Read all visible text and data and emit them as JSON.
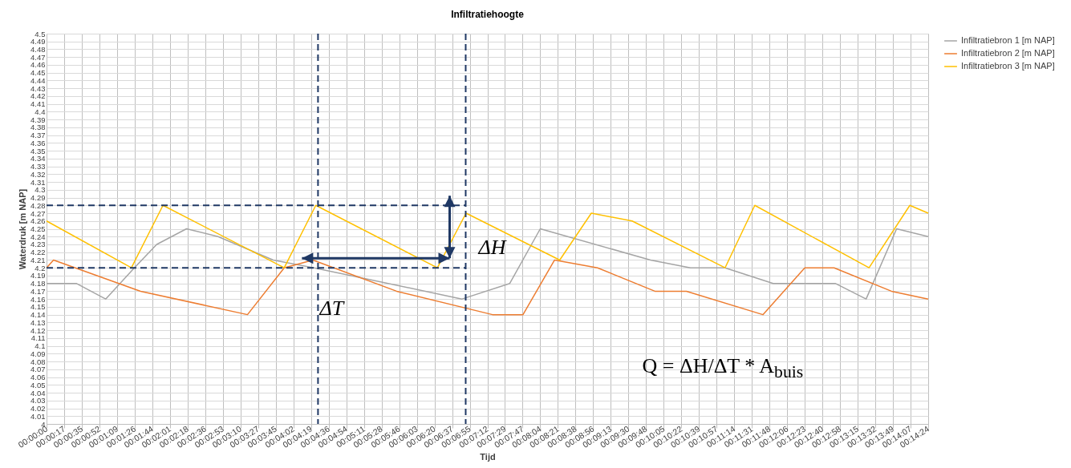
{
  "chart_data": {
    "type": "line",
    "title": "Infiltratiehoogte",
    "xlabel": "Tijd",
    "ylabel": "Waterdruk [m NAP]",
    "x": [
      0,
      0.0231,
      0.0317,
      0.0647,
      0.0733,
      0.1064,
      0.1142,
      0.1397,
      0.1483,
      0.1594,
      0.1847,
      0.1928,
      0.2239,
      0.235,
      0.24
    ],
    "series": [
      {
        "name": "Infiltratiebron 1 [m NAP]",
        "color": "#a5a5a5",
        "x": [
          0,
          0.0081,
          0.0161,
          0.0239,
          0.03,
          0.0381,
          0.0467,
          0.0617,
          0.0728,
          0.1131,
          0.1261,
          0.1344,
          0.1644,
          0.1753,
          0.1847,
          0.1978,
          0.2147,
          0.2231,
          0.2314,
          0.24
        ],
        "values": [
          4.18,
          4.18,
          4.16,
          4.2,
          4.23,
          4.25,
          4.24,
          4.21,
          4.2,
          4.16,
          4.18,
          4.25,
          4.21,
          4.2,
          4.2,
          4.18,
          4.18,
          4.16,
          4.25,
          4.24
        ]
      },
      {
        "name": "Infiltratiebron 2 [m NAP]",
        "color": "#ed7d31",
        "x": [
          0,
          0.0019,
          0.0256,
          0.0547,
          0.0647,
          0.0725,
          0.0953,
          0.1214,
          0.1297,
          0.1383,
          0.15,
          0.1656,
          0.1742,
          0.195,
          0.2064,
          0.2144,
          0.23,
          0.24
        ],
        "values": [
          4.2,
          4.21,
          4.17,
          4.14,
          4.2,
          4.21,
          4.17,
          4.14,
          4.14,
          4.21,
          4.2,
          4.17,
          4.17,
          4.14,
          4.2,
          4.2,
          4.17,
          4.16
        ]
      },
      {
        "name": "Infiltratiebron 3 [m NAP]",
        "color": "#ffc000",
        "values": [
          4.26,
          4.2,
          4.28,
          4.2,
          4.28,
          4.2,
          4.27,
          4.21,
          4.27,
          4.26,
          4.2,
          4.28,
          4.2,
          4.28,
          4.27
        ]
      }
    ],
    "xlim": [
      0,
      0.24
    ],
    "xticks": [
      {
        "value": 0,
        "label": "00:00:00"
      },
      {
        "value": 0.0048,
        "label": "00:00:17"
      },
      {
        "value": 0.0096,
        "label": "00:00:35"
      },
      {
        "value": 0.0144,
        "label": "00:00:52"
      },
      {
        "value": 0.0192,
        "label": "00:01:09"
      },
      {
        "value": 0.024,
        "label": "00:01:26"
      },
      {
        "value": 0.0288,
        "label": "00:01:44"
      },
      {
        "value": 0.0336,
        "label": "00:02:01"
      },
      {
        "value": 0.0384,
        "label": "00:02:18"
      },
      {
        "value": 0.0432,
        "label": "00:02:36"
      },
      {
        "value": 0.048,
        "label": "00:02:53"
      },
      {
        "value": 0.0528,
        "label": "00:03:10"
      },
      {
        "value": 0.0576,
        "label": "00:03:27"
      },
      {
        "value": 0.0624,
        "label": "00:03:45"
      },
      {
        "value": 0.0672,
        "label": "00:04:02"
      },
      {
        "value": 0.072,
        "label": "00:04:19"
      },
      {
        "value": 0.0768,
        "label": "00:04:36"
      },
      {
        "value": 0.0816,
        "label": "00:04:54"
      },
      {
        "value": 0.0864,
        "label": "00:05:11"
      },
      {
        "value": 0.0912,
        "label": "00:05:28"
      },
      {
        "value": 0.096,
        "label": "00:05:46"
      },
      {
        "value": 0.1008,
        "label": "00:06:03"
      },
      {
        "value": 0.1056,
        "label": "00:06:20"
      },
      {
        "value": 0.1104,
        "label": "00:06:37"
      },
      {
        "value": 0.1152,
        "label": "00:06:55"
      },
      {
        "value": 0.12,
        "label": "00:07:12"
      },
      {
        "value": 0.1248,
        "label": "00:07:29"
      },
      {
        "value": 0.1296,
        "label": "00:07:47"
      },
      {
        "value": 0.1344,
        "label": "00:08:04"
      },
      {
        "value": 0.1392,
        "label": "00:08:21"
      },
      {
        "value": 0.144,
        "label": "00:08:38"
      },
      {
        "value": 0.1488,
        "label": "00:08:56"
      },
      {
        "value": 0.1536,
        "label": "00:09:13"
      },
      {
        "value": 0.1584,
        "label": "00:09:30"
      },
      {
        "value": 0.1632,
        "label": "00:09:48"
      },
      {
        "value": 0.168,
        "label": "00:10:05"
      },
      {
        "value": 0.1728,
        "label": "00:10:22"
      },
      {
        "value": 0.1776,
        "label": "00:10:39"
      },
      {
        "value": 0.1824,
        "label": "00:10:57"
      },
      {
        "value": 0.1872,
        "label": "00:11:14"
      },
      {
        "value": 0.192,
        "label": "00:11:31"
      },
      {
        "value": 0.1968,
        "label": "00:11:48"
      },
      {
        "value": 0.2016,
        "label": "00:12:06"
      },
      {
        "value": 0.2064,
        "label": "00:12:23"
      },
      {
        "value": 0.2112,
        "label": "00:12:40"
      },
      {
        "value": 0.216,
        "label": "00:12:58"
      },
      {
        "value": 0.2208,
        "label": "00:13:15"
      },
      {
        "value": 0.2256,
        "label": "00:13:32"
      },
      {
        "value": 0.2304,
        "label": "00:13:49"
      },
      {
        "value": 0.2352,
        "label": "00:14:07"
      },
      {
        "value": 0.24,
        "label": "00:14:24"
      }
    ],
    "ylim": [
      4,
      4.5
    ],
    "yticks": [
      4,
      4.01,
      4.02,
      4.03,
      4.04,
      4.05,
      4.06,
      4.07,
      4.08,
      4.09,
      4.1,
      4.11,
      4.12,
      4.13,
      4.14,
      4.15,
      4.16,
      4.17,
      4.18,
      4.19,
      4.2,
      4.21,
      4.22,
      4.23,
      4.24,
      4.25,
      4.26,
      4.27,
      4.28,
      4.29,
      4.3,
      4.31,
      4.32,
      4.33,
      4.34,
      4.35,
      4.36,
      4.37,
      4.38,
      4.39,
      4.4,
      4.41,
      4.42,
      4.43,
      4.44,
      4.45,
      4.46,
      4.47,
      4.48,
      4.49,
      4.5
    ],
    "ref_lines": [
      {
        "axis": "x",
        "value": 0.0739,
        "color": "#1f3864",
        "line_style": "dashed"
      },
      {
        "axis": "x",
        "value": 0.1141,
        "color": "#1f3864",
        "line_style": "dashed"
      },
      {
        "axis": "y",
        "value": 4.28,
        "color": "#1f3864",
        "line_style": "dashed"
      },
      {
        "axis": "y",
        "value": 4.2,
        "color": "#1f3864",
        "line_style": "dashed"
      }
    ],
    "annotations": [
      "ΔT",
      "ΔH",
      "Q = ΔH/ΔT * A$_{buis}$"
    ],
    "grid": true,
    "legend": "right",
    "line_style": "solid"
  }
}
